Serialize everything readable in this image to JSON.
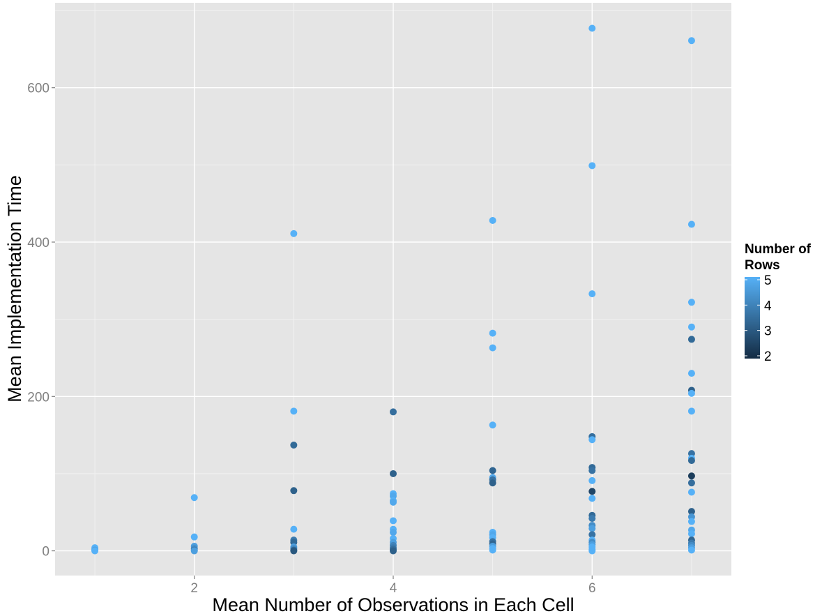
{
  "chart_data": {
    "type": "scatter",
    "title": "",
    "xlabel": "Mean Number of Observations in Each Cell",
    "ylabel": "Mean Implementation Time",
    "xlim": [
      0.6,
      7.4
    ],
    "ylim": [
      -32,
      710
    ],
    "x_ticks": [
      2,
      4,
      6
    ],
    "y_ticks": [
      0,
      200,
      400,
      600
    ],
    "grid": true,
    "background": "#e5e5e5",
    "legend": {
      "title_line1": "Number of",
      "title_line2": "Rows",
      "position": "right",
      "type": "colorbar",
      "range": [
        2,
        5
      ],
      "ticks": [
        2,
        3,
        4,
        5
      ],
      "color_low": "#132b43",
      "color_high": "#56b1f7"
    },
    "points": [
      {
        "x": 1,
        "y": 4,
        "c": 5
      },
      {
        "x": 1,
        "y": 2,
        "c": 5
      },
      {
        "x": 1,
        "y": 1,
        "c": 4.6
      },
      {
        "x": 1,
        "y": 0,
        "c": 5
      },
      {
        "x": 2,
        "y": 69,
        "c": 5
      },
      {
        "x": 2,
        "y": 18,
        "c": 5
      },
      {
        "x": 2,
        "y": 6,
        "c": 4.6
      },
      {
        "x": 2,
        "y": 3,
        "c": 4.2
      },
      {
        "x": 2,
        "y": 1,
        "c": 3.8
      },
      {
        "x": 2,
        "y": 0,
        "c": 4.6
      },
      {
        "x": 3,
        "y": 411,
        "c": 5
      },
      {
        "x": 3,
        "y": 181,
        "c": 5
      },
      {
        "x": 3,
        "y": 137,
        "c": 3.4
      },
      {
        "x": 3,
        "y": 78,
        "c": 3.2
      },
      {
        "x": 3,
        "y": 28,
        "c": 5
      },
      {
        "x": 3,
        "y": 14,
        "c": 3.8
      },
      {
        "x": 3,
        "y": 11,
        "c": 3.4
      },
      {
        "x": 3,
        "y": 5,
        "c": 4.6
      },
      {
        "x": 3,
        "y": 3,
        "c": 4.2
      },
      {
        "x": 3,
        "y": 1,
        "c": 3.5
      },
      {
        "x": 3,
        "y": 0,
        "c": 3
      },
      {
        "x": 4,
        "y": 180,
        "c": 3.5
      },
      {
        "x": 4,
        "y": 100,
        "c": 3.2
      },
      {
        "x": 4,
        "y": 74,
        "c": 5
      },
      {
        "x": 4,
        "y": 71,
        "c": 4.8
      },
      {
        "x": 4,
        "y": 65,
        "c": 5
      },
      {
        "x": 4,
        "y": 63,
        "c": 4.8
      },
      {
        "x": 4,
        "y": 39,
        "c": 5
      },
      {
        "x": 4,
        "y": 28,
        "c": 5
      },
      {
        "x": 4,
        "y": 24,
        "c": 4.8
      },
      {
        "x": 4,
        "y": 16,
        "c": 5
      },
      {
        "x": 4,
        "y": 11,
        "c": 4.6
      },
      {
        "x": 4,
        "y": 7,
        "c": 4
      },
      {
        "x": 4,
        "y": 4,
        "c": 3.8
      },
      {
        "x": 4,
        "y": 2,
        "c": 3.5
      },
      {
        "x": 4,
        "y": 0,
        "c": 3.2
      },
      {
        "x": 5,
        "y": 428,
        "c": 5
      },
      {
        "x": 5,
        "y": 282,
        "c": 5
      },
      {
        "x": 5,
        "y": 263,
        "c": 5
      },
      {
        "x": 5,
        "y": 163,
        "c": 5
      },
      {
        "x": 5,
        "y": 104,
        "c": 3.3
      },
      {
        "x": 5,
        "y": 95,
        "c": 4.8
      },
      {
        "x": 5,
        "y": 92,
        "c": 3.6
      },
      {
        "x": 5,
        "y": 88,
        "c": 3.2
      },
      {
        "x": 5,
        "y": 24,
        "c": 5
      },
      {
        "x": 5,
        "y": 21,
        "c": 4.8
      },
      {
        "x": 5,
        "y": 17,
        "c": 5
      },
      {
        "x": 5,
        "y": 12,
        "c": 3.6
      },
      {
        "x": 5,
        "y": 9,
        "c": 3.3
      },
      {
        "x": 5,
        "y": 6,
        "c": 4.6
      },
      {
        "x": 5,
        "y": 3,
        "c": 5
      },
      {
        "x": 5,
        "y": 1,
        "c": 5
      },
      {
        "x": 6,
        "y": 677,
        "c": 5
      },
      {
        "x": 6,
        "y": 499,
        "c": 5
      },
      {
        "x": 6,
        "y": 333,
        "c": 5
      },
      {
        "x": 6,
        "y": 148,
        "c": 3.5
      },
      {
        "x": 6,
        "y": 144,
        "c": 5
      },
      {
        "x": 6,
        "y": 108,
        "c": 3.4
      },
      {
        "x": 6,
        "y": 104,
        "c": 3.6
      },
      {
        "x": 6,
        "y": 91,
        "c": 5
      },
      {
        "x": 6,
        "y": 77,
        "c": 2.6
      },
      {
        "x": 6,
        "y": 68,
        "c": 5
      },
      {
        "x": 6,
        "y": 46,
        "c": 3.4
      },
      {
        "x": 6,
        "y": 42,
        "c": 3.8
      },
      {
        "x": 6,
        "y": 33,
        "c": 4.2
      },
      {
        "x": 6,
        "y": 29,
        "c": 4.6
      },
      {
        "x": 6,
        "y": 21,
        "c": 3.6
      },
      {
        "x": 6,
        "y": 14,
        "c": 5
      },
      {
        "x": 6,
        "y": 11,
        "c": 4.2
      },
      {
        "x": 6,
        "y": 8,
        "c": 4.6
      },
      {
        "x": 6,
        "y": 5,
        "c": 5
      },
      {
        "x": 6,
        "y": 2,
        "c": 5
      },
      {
        "x": 6,
        "y": 0,
        "c": 5
      },
      {
        "x": 7,
        "y": 661,
        "c": 5
      },
      {
        "x": 7,
        "y": 423,
        "c": 5
      },
      {
        "x": 7,
        "y": 322,
        "c": 5
      },
      {
        "x": 7,
        "y": 290,
        "c": 5
      },
      {
        "x": 7,
        "y": 274,
        "c": 3.4
      },
      {
        "x": 7,
        "y": 230,
        "c": 5
      },
      {
        "x": 7,
        "y": 208,
        "c": 3.2
      },
      {
        "x": 7,
        "y": 204,
        "c": 5
      },
      {
        "x": 7,
        "y": 181,
        "c": 5
      },
      {
        "x": 7,
        "y": 126,
        "c": 3.6
      },
      {
        "x": 7,
        "y": 120,
        "c": 5
      },
      {
        "x": 7,
        "y": 117,
        "c": 3.4
      },
      {
        "x": 7,
        "y": 97,
        "c": 2.4
      },
      {
        "x": 7,
        "y": 88,
        "c": 3.5
      },
      {
        "x": 7,
        "y": 76,
        "c": 5
      },
      {
        "x": 7,
        "y": 51,
        "c": 3.2
      },
      {
        "x": 7,
        "y": 44,
        "c": 4.4
      },
      {
        "x": 7,
        "y": 38,
        "c": 5
      },
      {
        "x": 7,
        "y": 27,
        "c": 4.8
      },
      {
        "x": 7,
        "y": 22,
        "c": 5
      },
      {
        "x": 7,
        "y": 14,
        "c": 3.3
      },
      {
        "x": 7,
        "y": 10,
        "c": 3.8
      },
      {
        "x": 7,
        "y": 7,
        "c": 4.2
      },
      {
        "x": 7,
        "y": 4,
        "c": 4.6
      },
      {
        "x": 7,
        "y": 1,
        "c": 5
      }
    ]
  }
}
